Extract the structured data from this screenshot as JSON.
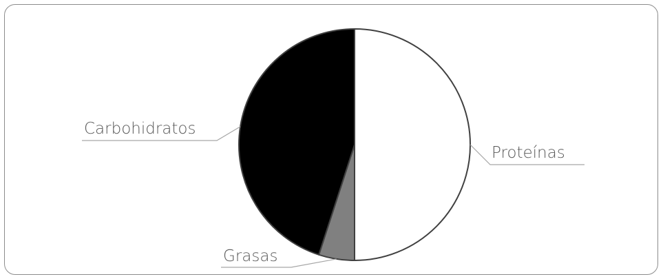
{
  "chart_data": {
    "type": "pie",
    "title": "",
    "start_angle_deg": 0,
    "direction": "clockwise",
    "outline_color": "#404040",
    "leader_color": "#a6a6a6",
    "label_color": "#595959",
    "slices": [
      {
        "label": "Proteínas",
        "value": 50,
        "color": "#ffffff"
      },
      {
        "label": "Grasas",
        "value": 5,
        "color": "#808080"
      },
      {
        "label": "Carbohidratos",
        "value": 45,
        "color": "#000000"
      }
    ]
  }
}
